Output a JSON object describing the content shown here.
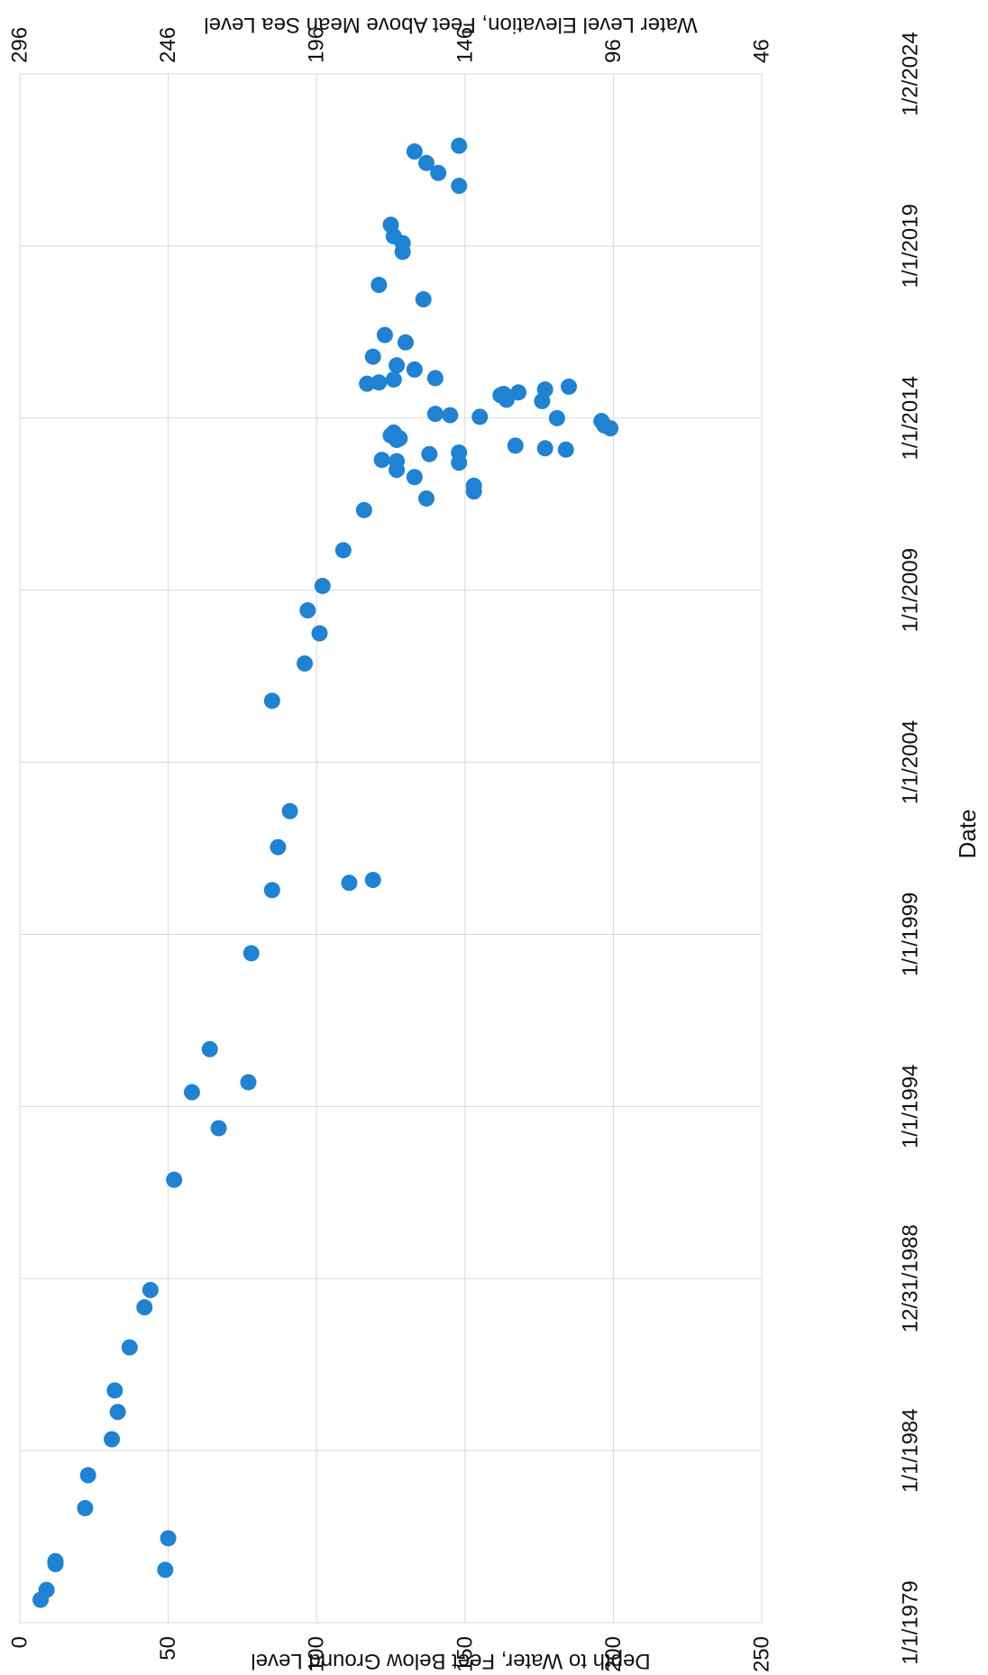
{
  "chart_data": {
    "type": "scatter",
    "orientation": "rotated-90-clockwise",
    "xlabel": "Date",
    "ylabel": "Depth to Water, Feet Below Ground Level",
    "y2label": "Water Level Elevation, Feet Above Mean Sea Level",
    "x_ticks": [
      "1/1/1979",
      "1/1/1984",
      "12/31/1988",
      "1/1/1994",
      "1/1/1999",
      "1/1/2004",
      "1/1/2009",
      "1/1/2014",
      "1/1/2019",
      "1/2/2024"
    ],
    "xlim": [
      "1979-01-01",
      "2024-01-02"
    ],
    "y_ticks": [
      "0",
      "50",
      "100",
      "150",
      "200",
      "250"
    ],
    "ylim": [
      0,
      250
    ],
    "y2_ticks": [
      "296",
      "246",
      "196",
      "146",
      "96",
      "46"
    ],
    "y2lim": [
      296,
      46
    ],
    "grid": true,
    "marker_color": "#1f82d2",
    "gridline_color": "#d9d9d9",
    "series": [
      {
        "points": [
          [
            "1979-09-01",
            7
          ],
          [
            "1979-12-15",
            9
          ],
          [
            "1980-09-15",
            12
          ],
          [
            "1980-10-15",
            12
          ],
          [
            "1982-05-01",
            22
          ],
          [
            "1983-04-15",
            23
          ],
          [
            "1984-05-01",
            31
          ],
          [
            "1985-02-15",
            33
          ],
          [
            "1985-10-01",
            32
          ],
          [
            "1987-01-01",
            37
          ],
          [
            "1988-03-01",
            42
          ],
          [
            "1988-09-01",
            44
          ],
          [
            "1980-07-15",
            49
          ],
          [
            "1981-06-15",
            50
          ],
          [
            "1991-11-15",
            52
          ],
          [
            "1993-05-15",
            67
          ],
          [
            "1994-06-01",
            58
          ],
          [
            "1995-09-01",
            64
          ],
          [
            "1994-09-15",
            77
          ],
          [
            "1998-06-15",
            78
          ],
          [
            "2000-04-15",
            85
          ],
          [
            "2001-07-15",
            87
          ],
          [
            "2002-08-01",
            91
          ],
          [
            "2005-10-15",
            85
          ],
          [
            "2006-11-15",
            96
          ],
          [
            "2007-10-01",
            101
          ],
          [
            "2008-06-01",
            97
          ],
          [
            "2009-02-15",
            102
          ],
          [
            "2010-03-01",
            109
          ],
          [
            "2011-05-01",
            116
          ],
          [
            "2000-07-01",
            111
          ],
          [
            "2000-08-01",
            119
          ],
          [
            "2011-09-01",
            137
          ],
          [
            "2011-11-15",
            153
          ],
          [
            "2012-01-15",
            153
          ],
          [
            "2012-04-15",
            133
          ],
          [
            "2012-07-01",
            127
          ],
          [
            "2012-10-15",
            122
          ],
          [
            "2012-10-01",
            127
          ],
          [
            "2012-09-15",
            148
          ],
          [
            "2012-12-15",
            138
          ],
          [
            "2013-01-01",
            148
          ],
          [
            "2013-02-01",
            184
          ],
          [
            "2013-02-15",
            177
          ],
          [
            "2013-03-15",
            167
          ],
          [
            "2013-08-01",
            126
          ],
          [
            "2013-07-01",
            125
          ],
          [
            "2013-05-15",
            127
          ],
          [
            "2013-06-01",
            128
          ],
          [
            "2013-09-15",
            199
          ],
          [
            "2013-10-15",
            197
          ],
          [
            "2013-12-01",
            196
          ],
          [
            "2014-01-01",
            181
          ],
          [
            "2014-01-15",
            155
          ],
          [
            "2014-02-01",
            145
          ],
          [
            "2014-02-15",
            140
          ],
          [
            "2014-07-01",
            176
          ],
          [
            "2014-07-15",
            164
          ],
          [
            "2014-09-01",
            162
          ],
          [
            "2014-09-15",
            163
          ],
          [
            "2014-10-01",
            168
          ],
          [
            "2014-11-01",
            177
          ],
          [
            "2014-12-01",
            185
          ],
          [
            "2015-01-01",
            117
          ],
          [
            "2015-01-15",
            121
          ],
          [
            "2015-02-15",
            126
          ],
          [
            "2015-03-01",
            140
          ],
          [
            "2015-06-01",
            133
          ],
          [
            "2015-07-15",
            127
          ],
          [
            "2015-10-15",
            119
          ],
          [
            "2016-03-15",
            130
          ],
          [
            "2016-06-01",
            123
          ],
          [
            "2017-06-15",
            136
          ],
          [
            "2017-11-15",
            121
          ],
          [
            "2018-11-01",
            129
          ],
          [
            "2019-02-01",
            129
          ],
          [
            "2019-04-15",
            126
          ],
          [
            "2019-08-15",
            125
          ],
          [
            "2020-10-01",
            148
          ],
          [
            "2021-02-15",
            141
          ],
          [
            "2021-06-01",
            137
          ],
          [
            "2021-10-01",
            133
          ],
          [
            "2021-12-01",
            148
          ]
        ]
      }
    ]
  }
}
